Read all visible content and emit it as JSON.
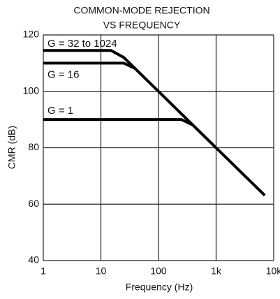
{
  "chart_data": {
    "type": "line",
    "title": [
      "COMMON-MODE REJECTION",
      "VS FREQUENCY"
    ],
    "x_label": "Frequency (Hz)",
    "y_label": "CMR (dB)",
    "log_x": true,
    "grid": true,
    "xlim": [
      1,
      10000
    ],
    "ylim": [
      40,
      120
    ],
    "xticks": [
      1,
      10,
      100,
      {
        "value": 1000,
        "label": "1k"
      },
      {
        "value": 10000,
        "label": "10k"
      }
    ],
    "yticks": [
      40,
      60,
      80,
      100,
      120
    ],
    "series": [
      {
        "name": "G = 32 to 1024",
        "color": "#000000",
        "x": [
          1,
          15,
          25,
          7000
        ],
        "values": [
          114.5,
          114.5,
          112,
          63.1
        ]
      },
      {
        "name": "G = 16",
        "color": "#000000",
        "x": [
          1,
          25,
          40
        ],
        "values": [
          110,
          110,
          108
        ]
      },
      {
        "name": "G = 1",
        "color": "#000000",
        "x": [
          1,
          250,
          400
        ],
        "values": [
          90,
          90,
          88
        ]
      }
    ]
  }
}
